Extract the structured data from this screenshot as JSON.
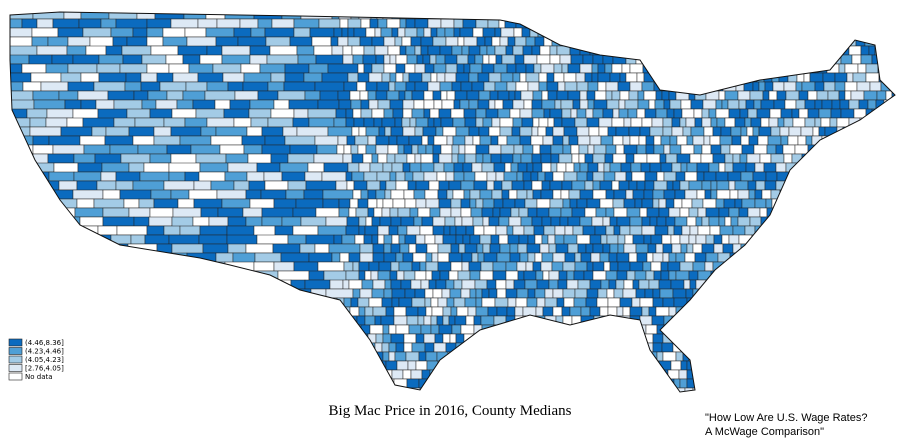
{
  "map": {
    "title": "Big Mac Price in 2016, County Medians",
    "legend": [
      {
        "label": "(4.46,8.36]",
        "color": "#0b6bbf"
      },
      {
        "label": "(4.23,4.46]",
        "color": "#4f9fd6"
      },
      {
        "label": "(4.05,4.23]",
        "color": "#a3cbe6"
      },
      {
        "label": "[2.76,4.05]",
        "color": "#dde9f5"
      },
      {
        "label": "No data",
        "color": "#ffffff"
      }
    ],
    "source": [
      "\"How Low Are U.S. Wage Rates?",
      "A McWage Comparison\""
    ]
  }
}
